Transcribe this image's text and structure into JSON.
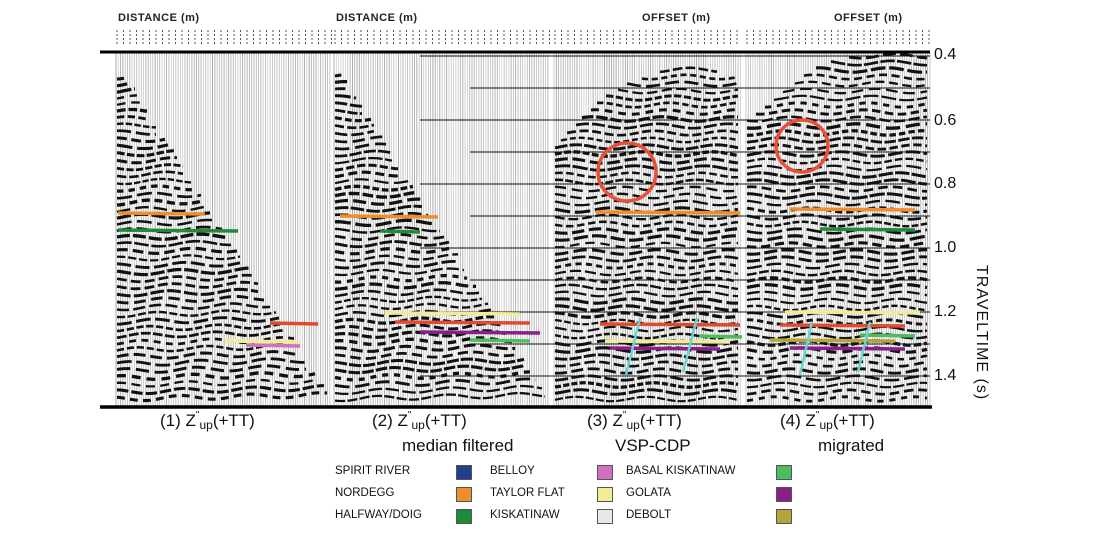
{
  "figure": {
    "panels": [
      {
        "id": 1,
        "axis_title": "DISTANCE (m)",
        "label_num": "(1)",
        "label_sub": "up",
        "label_tail": "(+TT)",
        "sublabel": ""
      },
      {
        "id": 2,
        "axis_title": "DISTANCE (m)",
        "label_num": "(2)",
        "label_sub": "up",
        "label_tail": "(+TT)",
        "sublabel": "median filtered"
      },
      {
        "id": 3,
        "axis_title": "OFFSET (m)",
        "label_num": "(3)",
        "label_sub": "up",
        "label_tail": "(+TT)",
        "sublabel": "VSP-CDP"
      },
      {
        "id": 4,
        "axis_title": "OFFSET (m)",
        "label_num": "(4)",
        "label_sub": "up",
        "label_tail": "(+TT)",
        "sublabel": "migrated"
      }
    ],
    "label_letter": "Z",
    "label_sup": "\"",
    "time_axis": {
      "title": "TRAVELTIME (s)",
      "ticks": [
        "0.4",
        "0.6",
        "0.8",
        "1.0",
        "1.2",
        "1.4"
      ],
      "range": [
        0.4,
        1.5
      ]
    },
    "legend": [
      {
        "name": "SPIRIT RIVER",
        "color": "#1f3f8f"
      },
      {
        "name": "NORDEGG",
        "color": "#f08c2a"
      },
      {
        "name": "HALFWAY/DOIG",
        "color": "#1f8a3a"
      },
      {
        "name": "BELLOY",
        "color": "#d070c0"
      },
      {
        "name": "TAYLOR FLAT",
        "color": "#f2ec98"
      },
      {
        "name": "KISKATINAW",
        "color": "#e8e8e8"
      },
      {
        "name": "BASAL KISKATINAW",
        "color": "#4cbc5c"
      },
      {
        "name": "GOLATA",
        "color": "#8a1f8a"
      },
      {
        "name": "DEBOLT",
        "color": "#e04a30"
      },
      {
        "name": "",
        "color": "#4cbc5c"
      },
      {
        "name": "",
        "color": "#8a1f8a"
      },
      {
        "name": "",
        "color": "#b6a43a"
      }
    ],
    "highlight_color": "#e8503a",
    "dip_marker_color": "#68d4d4"
  }
}
